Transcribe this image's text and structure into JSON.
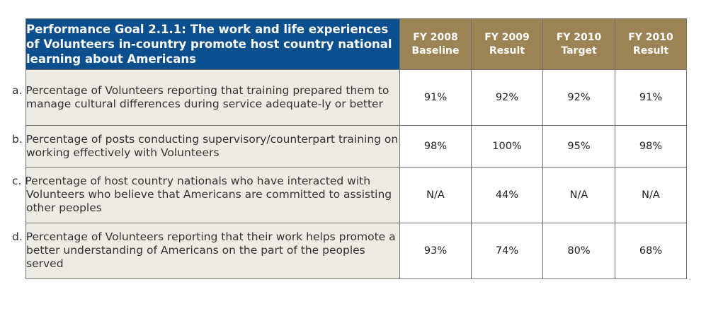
{
  "table": {
    "goal_title": "Performance Goal 2.1.1: The work and life experiences of Volunteers in-country promote host country national learning about Americans",
    "columns": [
      {
        "line1": "FY 2008",
        "line2": "Baseline"
      },
      {
        "line1": "FY 2009",
        "line2": "Result"
      },
      {
        "line1": "FY 2010",
        "line2": "Target"
      },
      {
        "line1": "FY 2010",
        "line2": "Result"
      }
    ],
    "rows": [
      {
        "description": "a. Percentage of Volunteers reporting that training prepared them to manage cultural differences during service adequate-ly or better",
        "values": [
          "91%",
          "92%",
          "92%",
          "91%"
        ]
      },
      {
        "description": "b. Percentage of posts conducting supervisory/counterpart training on working effectively with Volunteers",
        "values": [
          "98%",
          "100%",
          "95%",
          "98%"
        ]
      },
      {
        "description": "c. Percentage of host country nationals who have interacted with Volunteers who believe that Americans are committed to assisting other peoples",
        "values": [
          "N/A",
          "44%",
          "N/A",
          "N/A"
        ]
      },
      {
        "description": "d. Percentage of Volunteers reporting that their work helps promote a better understanding of Americans on the part of the peoples served",
        "values": [
          "93%",
          "74%",
          "80%",
          "68%"
        ]
      }
    ]
  },
  "colors": {
    "goal_header_bg": "#0b4f8f",
    "column_header_bg": "#9c8353",
    "description_bg": "#eeeae4",
    "border": "#6f6f6f"
  }
}
